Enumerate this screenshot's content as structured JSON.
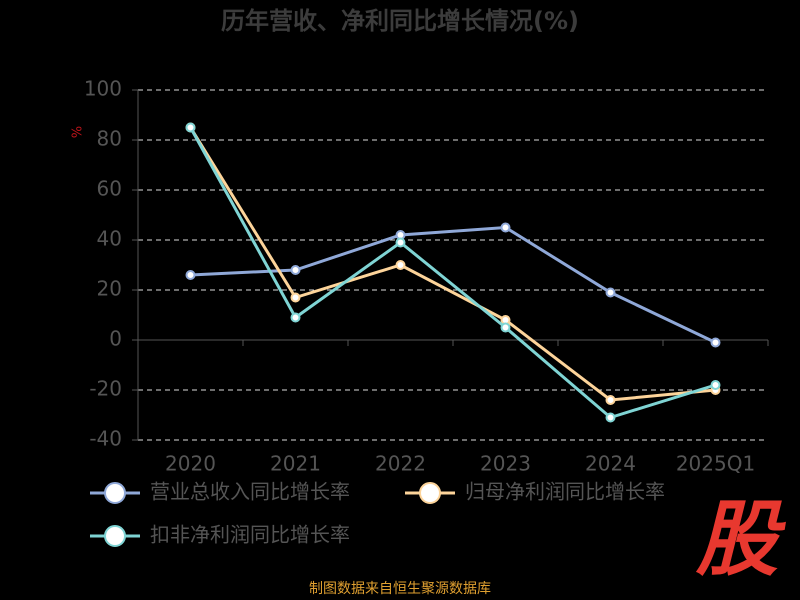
{
  "chart_data": {
    "type": "line",
    "title": "历年营收、净利同比增长情况(%)",
    "y_label": "%",
    "categories": [
      "2020",
      "2021",
      "2022",
      "2023",
      "2024",
      "2025Q1"
    ],
    "series": [
      {
        "name": "营业总收入同比增长率",
        "color": "#8fa8d8",
        "values": [
          26,
          28,
          42,
          45,
          19,
          -1
        ]
      },
      {
        "name": "归母净利润同比增长率",
        "color": "#fdd49a",
        "values": [
          85,
          17,
          30,
          8,
          -24,
          -20
        ]
      },
      {
        "name": "扣非净利润同比增长率",
        "color": "#7fd4d4",
        "values": [
          85,
          9,
          39,
          5,
          -31,
          -18
        ]
      }
    ],
    "ylim": [
      -40,
      100
    ],
    "yticks": [
      -40,
      -20,
      0,
      20,
      40,
      60,
      80,
      100
    ],
    "grid": true,
    "source": "制图数据来自恒生聚源数据库",
    "logo": "股"
  }
}
